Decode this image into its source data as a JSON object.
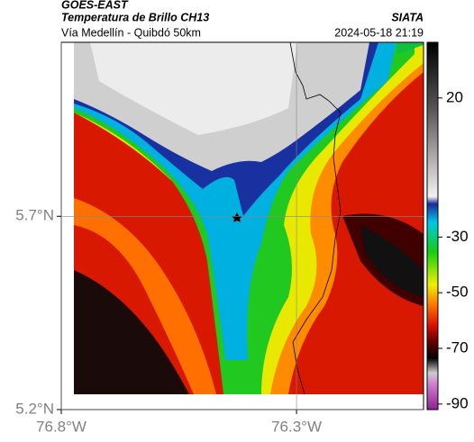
{
  "header": {
    "source": "GOES-EAST",
    "title": "Temperatura de Brillo CH13",
    "subtitle": "Vía Medellín - Quibdó 50km",
    "brand": "SIATA",
    "datetime": "2024-05-18 21:19"
  },
  "map": {
    "xlim": [
      -76.8,
      -76.03
    ],
    "ylim": [
      5.2,
      6.15
    ],
    "xticks": [
      {
        "value": -76.8,
        "label": "76.8°W"
      },
      {
        "value": -76.3,
        "label": "76.3°W"
      }
    ],
    "yticks": [
      {
        "value": 5.2,
        "label": "5.2°N"
      },
      {
        "value": 5.7,
        "label": "5.7°N"
      }
    ],
    "grid": true
  },
  "colorbar": {
    "lim": [
      -92,
      40
    ],
    "ticks": [
      20,
      -30,
      -50,
      -70,
      -90
    ]
  }
}
